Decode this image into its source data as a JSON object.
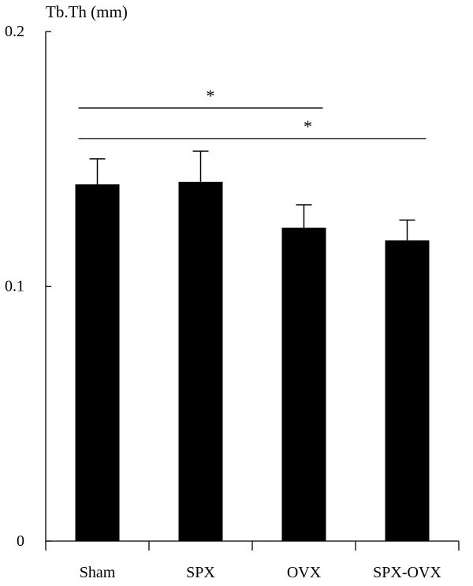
{
  "chart_data": {
    "type": "bar",
    "ylabel": "Tb.Th (mm)",
    "xlabel": "",
    "title": "",
    "categories": [
      "Sham",
      "SPX",
      "OVX",
      "SPX-OVX"
    ],
    "values": [
      0.14,
      0.141,
      0.123,
      0.118
    ],
    "errors": [
      0.01,
      0.012,
      0.009,
      0.008
    ],
    "ylim": [
      0,
      0.2
    ],
    "yticks": [
      {
        "value": 0,
        "label": "0"
      },
      {
        "value": 0.1,
        "label": "0.1"
      },
      {
        "value": 0.2,
        "label": "0.2"
      }
    ],
    "bar_color": "#000000",
    "grid": false,
    "significance": [
      {
        "from": "Sham",
        "to": "OVX",
        "label": "*",
        "y": 0.17
      },
      {
        "from": "Sham",
        "to": "SPX-OVX",
        "label": "*",
        "y": 0.158
      }
    ]
  }
}
